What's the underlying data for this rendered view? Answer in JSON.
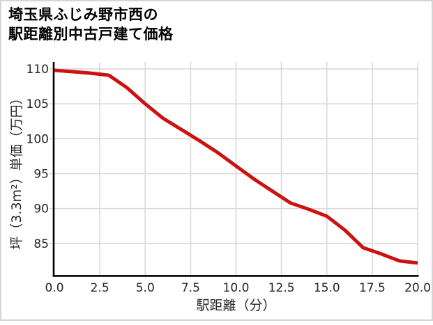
{
  "title": {
    "line1": "埼玉県ふじみ野市西の",
    "line2": "駅距離別中古戸建て価格"
  },
  "chart_data": {
    "type": "line",
    "title": "埼玉県ふじみ野市西の駅距離別中古戸建て価格",
    "xlabel": "駅距離（分）",
    "ylabel": "坪（3.3m²）単価（万円）",
    "x": [
      0,
      1,
      2,
      3,
      4,
      5,
      6,
      7,
      8,
      9,
      10,
      11,
      12,
      13,
      14,
      15,
      16,
      17,
      18,
      19,
      20
    ],
    "values": [
      109.8,
      109.6,
      109.4,
      109.1,
      107.3,
      105.0,
      102.9,
      101.3,
      99.7,
      98.0,
      96.1,
      94.2,
      92.5,
      90.8,
      89.9,
      88.9,
      86.9,
      84.4,
      83.5,
      82.5,
      82.2
    ],
    "x_ticks": [
      0,
      2.5,
      5,
      7.5,
      10,
      12.5,
      15,
      17.5,
      20
    ],
    "x_tick_labels": [
      "0.0",
      "2.5",
      "5.0",
      "7.5",
      "10.0",
      "12.5",
      "15.0",
      "17.5",
      "20.0"
    ],
    "y_ticks": [
      85,
      90,
      95,
      100,
      105,
      110
    ],
    "y_tick_labels": [
      "85",
      "90",
      "95",
      "100",
      "105",
      "110"
    ],
    "xlim": [
      0,
      20
    ],
    "ylim": [
      80.4,
      111.0
    ],
    "grid": true,
    "legend_position": "none",
    "line_color": "#cc1111",
    "grid_color": "#d9d9d9",
    "axis_color": "#000000",
    "tick_label_color": "#262626",
    "title_color": "#000000"
  }
}
